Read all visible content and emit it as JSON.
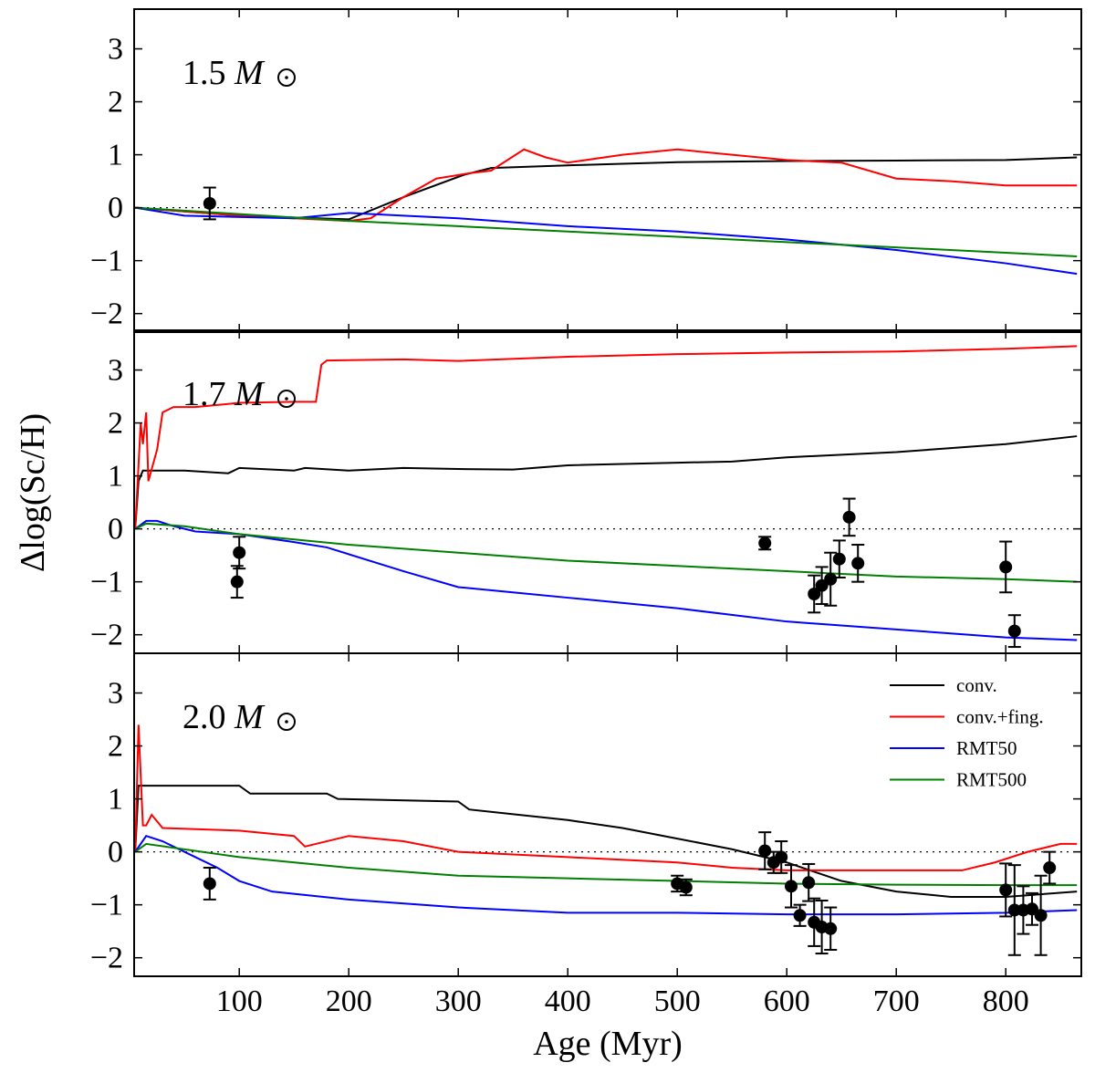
{
  "chart_data": {
    "type": "line",
    "xlabel": "Age (Myr)",
    "ylabel": "Δlog(Sc/H)",
    "xlim": [
      4,
      869
    ],
    "xticks": [
      100,
      200,
      300,
      400,
      500,
      600,
      700,
      800
    ],
    "yticks": [
      3,
      2,
      1,
      0,
      -1,
      -2
    ],
    "legend": {
      "placement": "top-right",
      "panel": 2,
      "entries": [
        {
          "label": "conv.",
          "color": "#000000"
        },
        {
          "label": "conv.+fing.",
          "color": "#ff0000"
        },
        {
          "label": "RMT50",
          "color": "#0000ff"
        },
        {
          "label": "RMT500",
          "color": "#008000"
        }
      ]
    },
    "panels": [
      {
        "label": "1.5",
        "unit": "M",
        "ylim": [
          -2.35,
          3.75
        ],
        "series": [
          {
            "name": "conv.",
            "x": [
              5,
              100,
              200,
              250,
              305,
              330,
              400,
              500,
              600,
              700,
              800,
              865
            ],
            "y": [
              0,
              -0.15,
              -0.22,
              0.2,
              0.62,
              0.75,
              0.8,
              0.86,
              0.88,
              0.89,
              0.9,
              0.95
            ]
          },
          {
            "name": "conv.+fing.",
            "x": [
              5,
              100,
              200,
              220,
              250,
              280,
              310,
              330,
              360,
              380,
              400,
              450,
              500,
              550,
              600,
              650,
              700,
              750,
              800,
              865
            ],
            "y": [
              0,
              -0.15,
              -0.25,
              -0.2,
              0.2,
              0.55,
              0.65,
              0.7,
              1.1,
              0.95,
              0.85,
              1.0,
              1.1,
              1.0,
              0.9,
              0.85,
              0.55,
              0.5,
              0.42,
              0.42
            ]
          },
          {
            "name": "RMT50",
            "x": [
              5,
              50,
              150,
              200,
              250,
              300,
              400,
              500,
              600,
              700,
              800,
              865
            ],
            "y": [
              0,
              -0.15,
              -0.2,
              -0.1,
              -0.15,
              -0.2,
              -0.35,
              -0.45,
              -0.6,
              -0.8,
              -1.05,
              -1.25
            ]
          },
          {
            "name": "RMT500",
            "x": [
              5,
              100,
              200,
              300,
              400,
              500,
              600,
              700,
              800,
              865
            ],
            "y": [
              0,
              -0.12,
              -0.25,
              -0.35,
              -0.45,
              -0.55,
              -0.65,
              -0.75,
              -0.85,
              -0.92
            ]
          }
        ],
        "obs": [
          [
            73,
            0.08,
            0.3
          ]
        ]
      },
      {
        "label": "1.7",
        "unit": "M",
        "ylim": [
          -2.35,
          3.75
        ],
        "series": [
          {
            "name": "conv.",
            "x": [
              5,
              8,
              12,
              50,
              90,
              100,
              150,
              160,
              200,
              250,
              300,
              350,
              400,
              500,
              550,
              600,
              700,
              800,
              865
            ],
            "y": [
              0,
              0.9,
              1.1,
              1.1,
              1.05,
              1.15,
              1.1,
              1.15,
              1.1,
              1.15,
              1.13,
              1.12,
              1.2,
              1.25,
              1.27,
              1.35,
              1.45,
              1.6,
              1.75
            ]
          },
          {
            "name": "conv.+fing.",
            "x": [
              5,
              10,
              12,
              15,
              17,
              25,
              30,
              40,
              60,
              100,
              150,
              170,
              175,
              180,
              250,
              300,
              400,
              500,
              600,
              700,
              800,
              865
            ],
            "y": [
              0,
              2.0,
              1.6,
              2.2,
              0.9,
              1.5,
              2.2,
              2.3,
              2.3,
              2.38,
              2.4,
              2.4,
              3.1,
              3.18,
              3.2,
              3.17,
              3.25,
              3.3,
              3.33,
              3.35,
              3.4,
              3.45
            ]
          },
          {
            "name": "RMT50",
            "x": [
              5,
              15,
              25,
              40,
              60,
              100,
              150,
              180,
              250,
              300,
              350,
              400,
              500,
              600,
              700,
              800,
              865
            ],
            "y": [
              0,
              0.15,
              0.15,
              0.05,
              -0.05,
              -0.1,
              -0.25,
              -0.35,
              -0.8,
              -1.1,
              -1.2,
              -1.3,
              -1.5,
              -1.75,
              -1.9,
              -2.05,
              -2.1
            ]
          },
          {
            "name": "RMT500",
            "x": [
              5,
              15,
              50,
              100,
              200,
              300,
              400,
              500,
              600,
              700,
              800,
              865
            ],
            "y": [
              0,
              0.1,
              0.05,
              -0.1,
              -0.3,
              -0.45,
              -0.6,
              -0.7,
              -0.8,
              -0.9,
              -0.95,
              -1.0
            ]
          }
        ],
        "obs": [
          [
            98,
            -1.0,
            0.3
          ],
          [
            100,
            -0.45,
            0.3
          ],
          [
            580,
            -0.27,
            0.12
          ],
          [
            625,
            -1.23,
            0.35
          ],
          [
            632,
            -1.07,
            0.35
          ],
          [
            640,
            -0.95,
            0.5
          ],
          [
            648,
            -0.57,
            0.35
          ],
          [
            657,
            0.22,
            0.35
          ],
          [
            665,
            -0.65,
            0.35
          ],
          [
            800,
            -0.72,
            0.48
          ],
          [
            808,
            -1.93,
            0.3
          ]
        ]
      },
      {
        "label": "2.0",
        "unit": "M",
        "ylim": [
          -2.35,
          3.75
        ],
        "series": [
          {
            "name": "conv.",
            "x": [
              5,
              8,
              100,
              110,
              180,
              190,
              300,
              310,
              400,
              450,
              500,
              550,
              600,
              650,
              700,
              750,
              800,
              865
            ],
            "y": [
              0,
              1.25,
              1.25,
              1.1,
              1.1,
              1.0,
              0.95,
              0.8,
              0.6,
              0.45,
              0.25,
              0.05,
              -0.2,
              -0.55,
              -0.75,
              -0.85,
              -0.85,
              -0.75
            ]
          },
          {
            "name": "conv.+fing.",
            "x": [
              5,
              8,
              12,
              15,
              20,
              30,
              100,
              150,
              160,
              200,
              250,
              300,
              400,
              500,
              550,
              600,
              700,
              760,
              790,
              820,
              850,
              865
            ],
            "y": [
              0,
              2.4,
              0.5,
              0.5,
              0.7,
              0.45,
              0.4,
              0.3,
              0.1,
              0.3,
              0.2,
              0.0,
              -0.1,
              -0.2,
              -0.3,
              -0.35,
              -0.35,
              -0.35,
              -0.2,
              0.0,
              0.15,
              0.15
            ]
          },
          {
            "name": "RMT50",
            "x": [
              5,
              15,
              30,
              60,
              80,
              100,
              130,
              200,
              300,
              400,
              500,
              600,
              700,
              800,
              865
            ],
            "y": [
              0,
              0.3,
              0.2,
              -0.1,
              -0.3,
              -0.55,
              -0.75,
              -0.9,
              -1.05,
              -1.15,
              -1.15,
              -1.18,
              -1.18,
              -1.15,
              -1.1
            ]
          },
          {
            "name": "RMT500",
            "x": [
              5,
              15,
              100,
              200,
              300,
              400,
              500,
              600,
              700,
              800,
              865
            ],
            "y": [
              0,
              0.15,
              -0.1,
              -0.3,
              -0.45,
              -0.5,
              -0.55,
              -0.6,
              -0.62,
              -0.63,
              -0.63
            ]
          }
        ],
        "obs": [
          [
            73,
            -0.6,
            0.3
          ],
          [
            500,
            -0.6,
            0.15
          ],
          [
            508,
            -0.67,
            0.15
          ],
          [
            580,
            0.02,
            0.35
          ],
          [
            588,
            -0.2,
            0.2
          ],
          [
            595,
            -0.1,
            0.3
          ],
          [
            604,
            -0.65,
            0.4
          ],
          [
            612,
            -1.2,
            0.2
          ],
          [
            620,
            -0.58,
            0.35
          ],
          [
            625,
            -1.33,
            0.45
          ],
          [
            632,
            -1.42,
            0.5
          ],
          [
            640,
            -1.45,
            0.4
          ],
          [
            800,
            -0.72,
            0.5
          ],
          [
            808,
            -1.1,
            0.85
          ],
          [
            816,
            -1.1,
            0.45
          ],
          [
            824,
            -1.08,
            0.3
          ],
          [
            832,
            -1.2,
            0.75
          ],
          [
            840,
            -0.3,
            0.3
          ]
        ]
      }
    ]
  }
}
